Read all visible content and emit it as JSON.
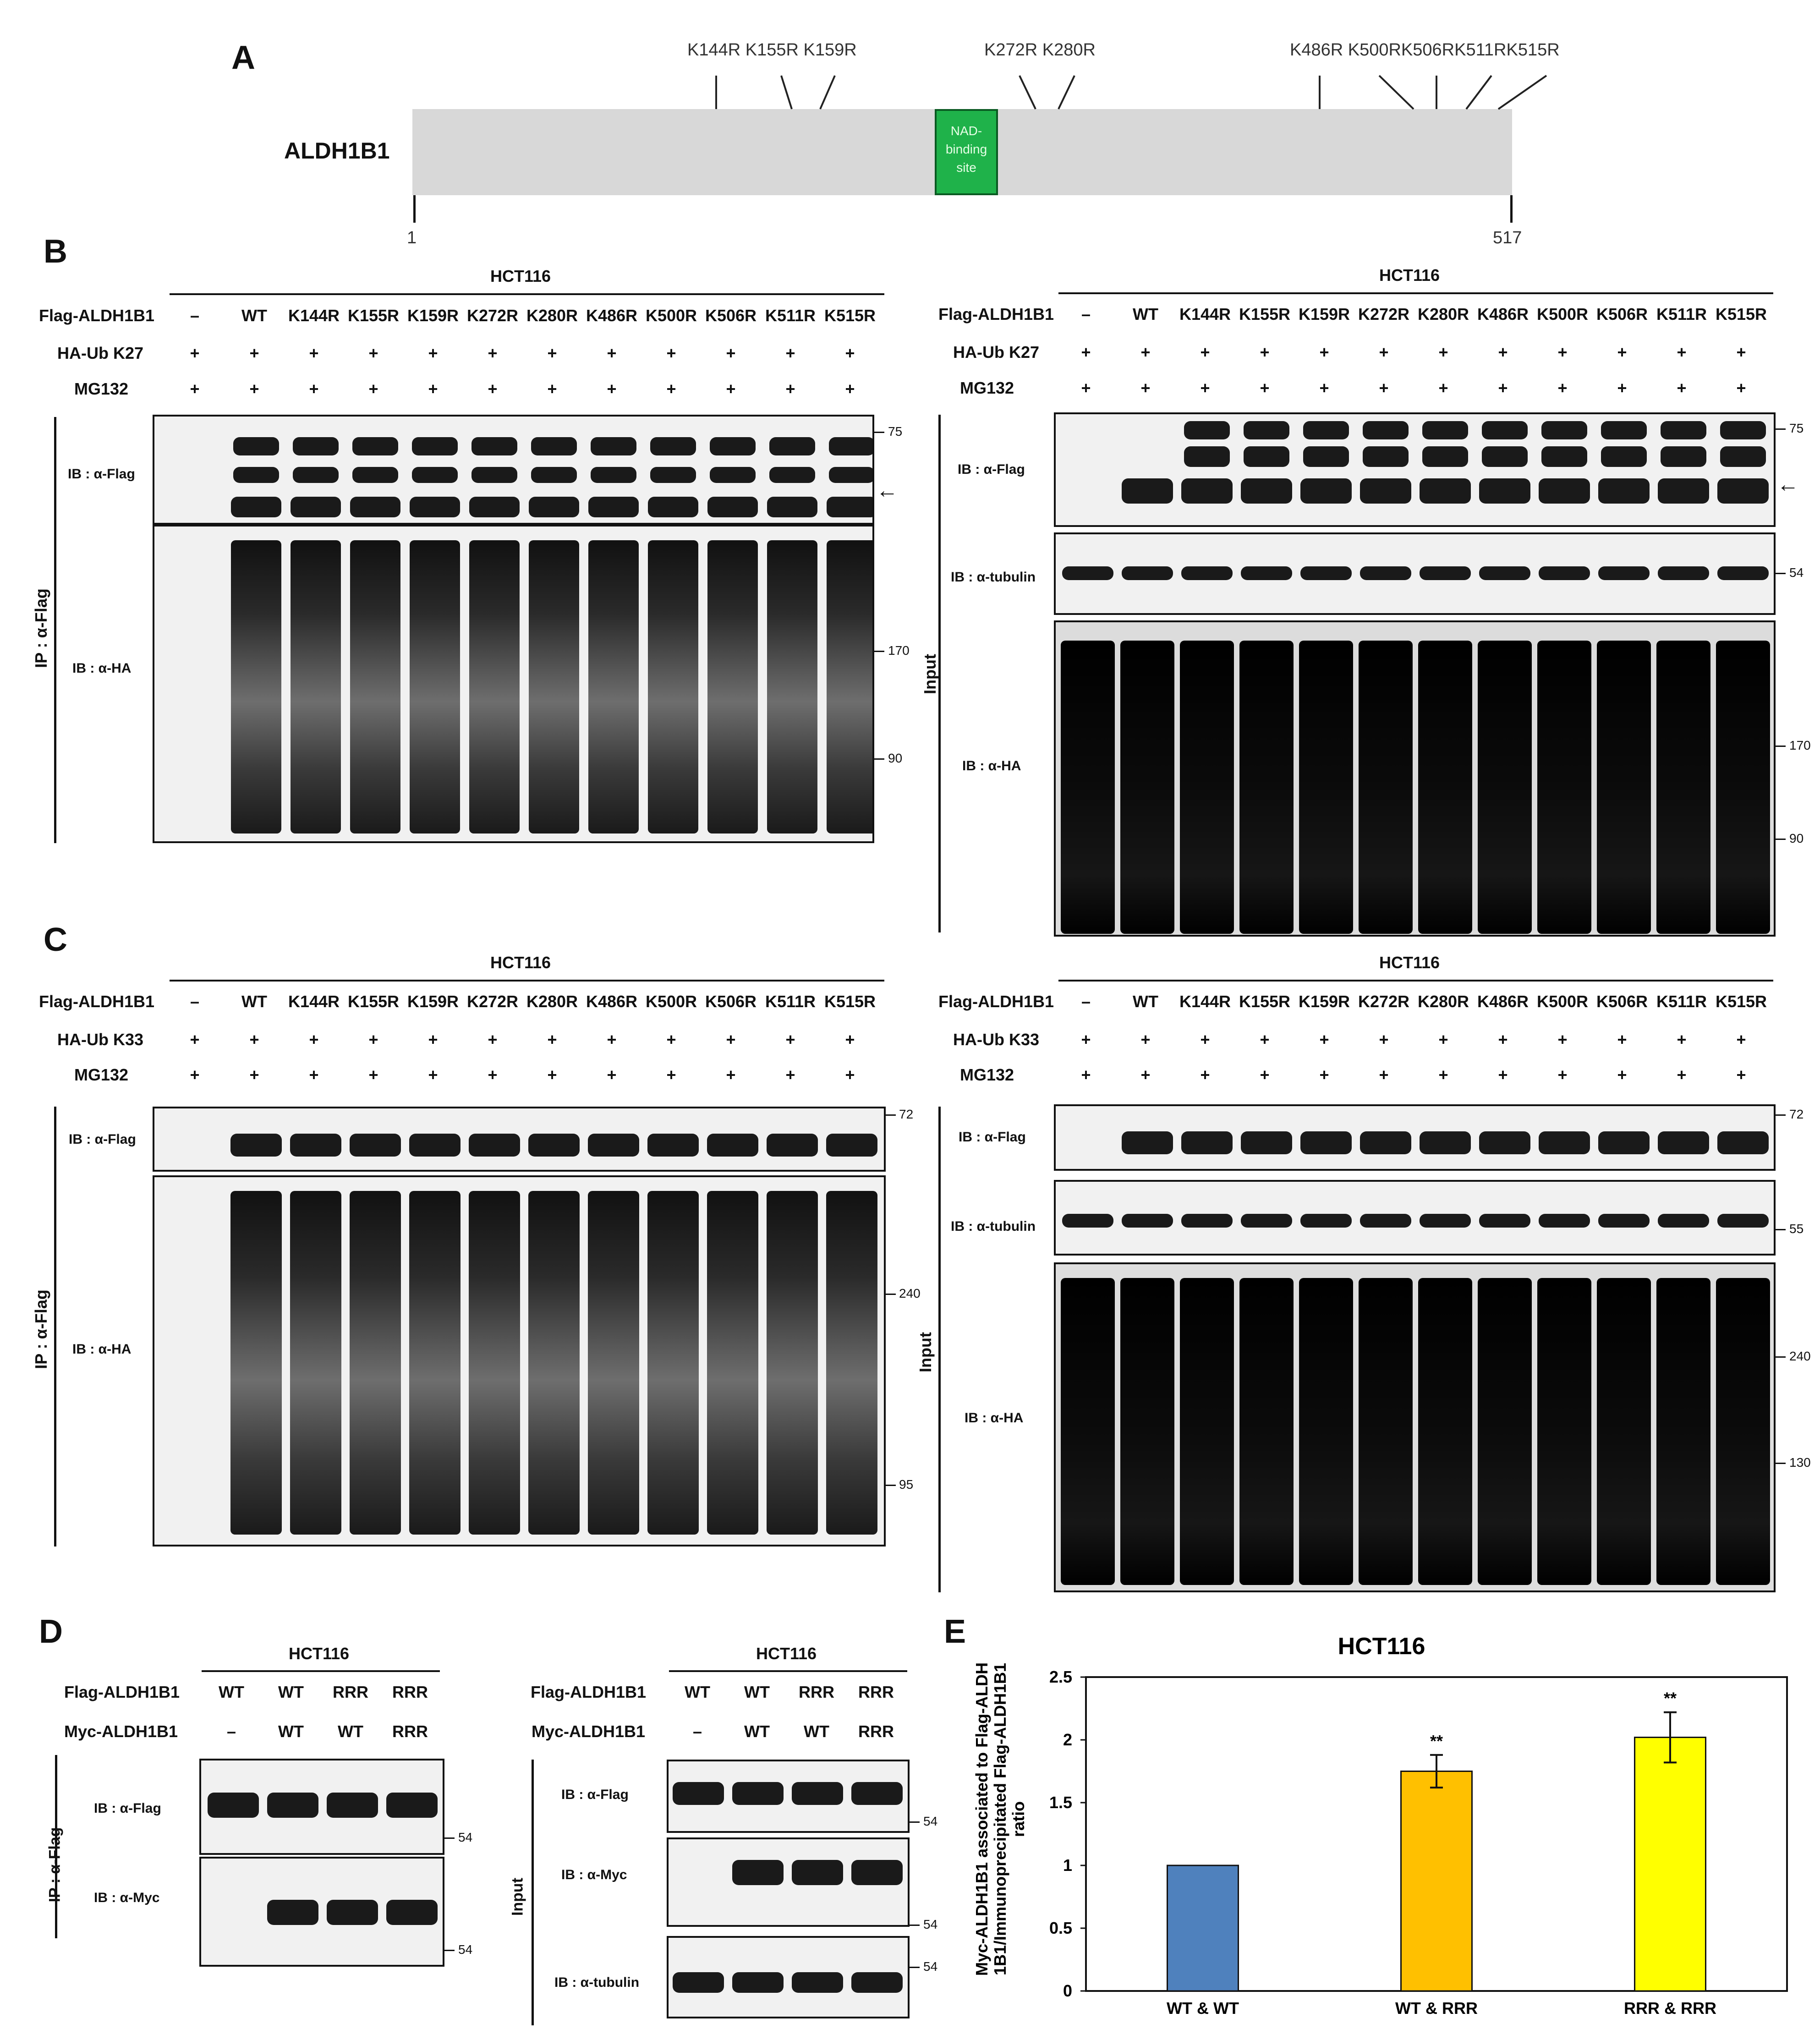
{
  "panels": {
    "A": "A",
    "B": "B",
    "C": "C",
    "D": "D",
    "E": "E"
  },
  "panelA": {
    "protein": "ALDH1B1",
    "domain_label": "NAD-\nbinding\nsite",
    "start": "1",
    "end": "517",
    "mutations": [
      "K144R K155R K159R",
      "K272R K280R",
      "K486R K500RK506RK511RK515R"
    ]
  },
  "common": {
    "cell_line": "HCT116",
    "row_flag": "Flag-ALDH1B1",
    "row_mg": "MG132",
    "lanes": [
      "–",
      "WT",
      "K144R",
      "K155R",
      "K159R",
      "K272R",
      "K280R",
      "K486R",
      "K500R",
      "K506R",
      "K511R",
      "K515R"
    ],
    "plus": "+",
    "ip_label": "IP : α-Flag",
    "input_label": "Input",
    "ib_flag": "IB : α-Flag",
    "ib_ha": "IB : α-HA",
    "ib_tubulin": "IB : α-tubulin",
    "ib_myc": "IB : α-Myc",
    "arrow": "←"
  },
  "panelB": {
    "row_ub": "HA-Ub K27",
    "left_mw": [
      "75",
      "170",
      "90"
    ],
    "right_mw": [
      "75",
      "54",
      "170",
      "90"
    ]
  },
  "panelC": {
    "row_ub": "HA-Ub K33",
    "left_mw": [
      "72",
      "240",
      "95"
    ],
    "right_mw": [
      "72",
      "55",
      "240",
      "130"
    ]
  },
  "panelD": {
    "row_flag": "Flag-ALDH1B1",
    "row_myc": "Myc-ALDH1B1",
    "flag_lanes": [
      "WT",
      "WT",
      "RRR",
      "RRR"
    ],
    "myc_lanes": [
      "–",
      "WT",
      "WT",
      "RRR"
    ],
    "left_mw": [
      "54",
      "54"
    ],
    "right_mw": [
      "54",
      "54",
      "54"
    ]
  },
  "chart_data": {
    "type": "bar",
    "title": "HCT116",
    "ylabel": "Myc-ALDH1B1 associated to Flag-ALDH1B1/Immunoprecipitated Flag-ALDH1B1  ratio",
    "categories": [
      "WT & WT",
      "WT & RRR",
      "RRR & RRR"
    ],
    "values": [
      1.0,
      1.75,
      2.02
    ],
    "errors": [
      0,
      0.13,
      0.2
    ],
    "significance": [
      "",
      "**",
      "**"
    ],
    "colors": [
      "#4f81bd",
      "#ffc000",
      "#ffff00"
    ],
    "ylim": [
      0,
      2.5
    ],
    "yticks": [
      "0",
      "0.5",
      "1",
      "1.5",
      "2",
      "2.5"
    ],
    "grid": false
  }
}
